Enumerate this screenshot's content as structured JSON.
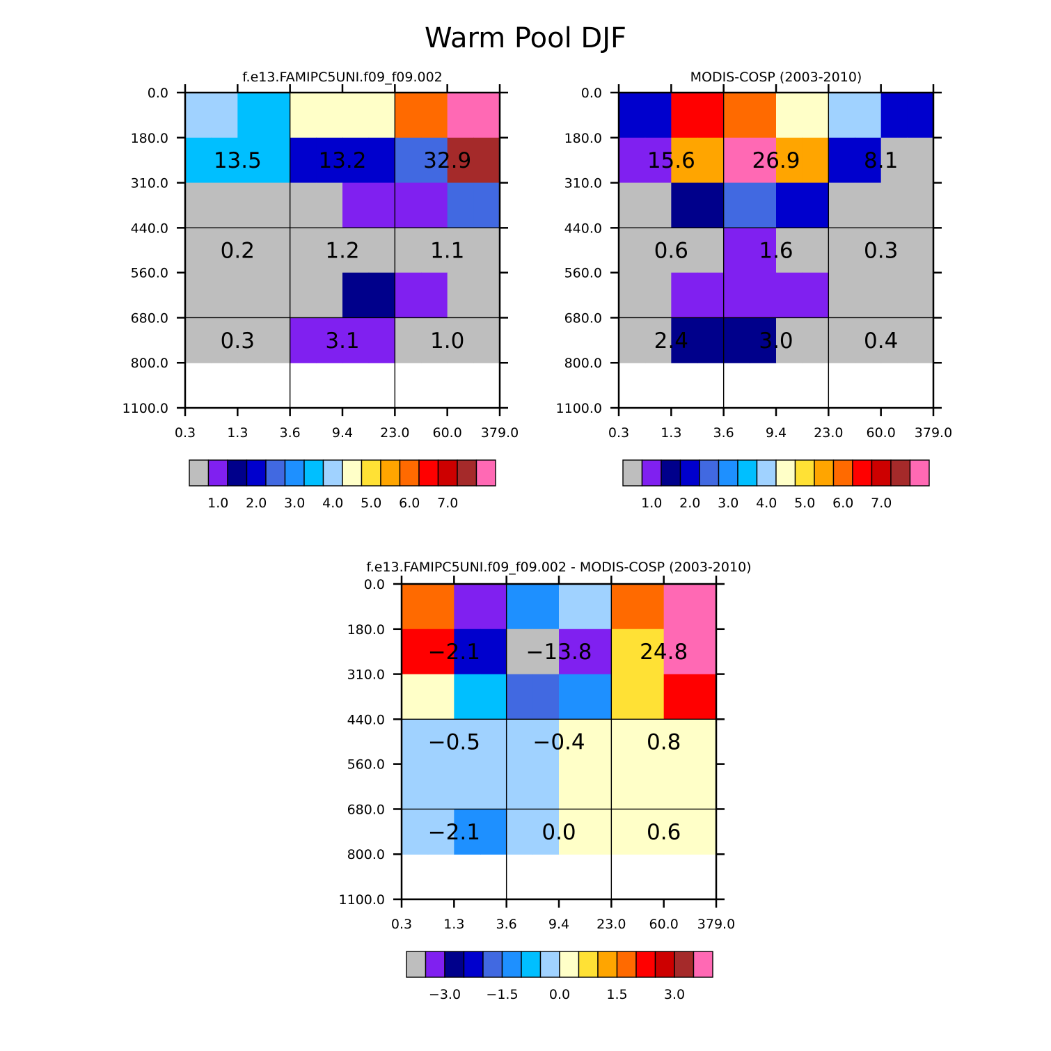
{
  "figure": {
    "title": "Warm Pool DJF"
  },
  "palette": [
    "#bebebe",
    "#8020f0",
    "#00008b",
    "#0000cd",
    "#4169e1",
    "#1e90ff",
    "#00bfff",
    "#a0d2ff",
    "#ffffc8",
    "#ffe135",
    "#ffa500",
    "#ff6a00",
    "#ff0000",
    "#cd0000",
    "#a52a2a",
    "#ff69b4"
  ],
  "chart_data": [
    {
      "type": "heatmap",
      "title": "f.e13.FAMIPC5UNI.f09_f09.002",
      "x_tick_labels": [
        "0.3",
        "1.3",
        "3.6",
        "9.4",
        "23.0",
        "60.0",
        "379.0"
      ],
      "y_tick_labels": [
        "0.0",
        "180.0",
        "310.0",
        "440.0",
        "560.0",
        "680.0",
        "800.0",
        "1100.0"
      ],
      "cell_colors": [
        [
          7,
          7,
          6,
          6,
          8,
          8,
          8,
          8,
          11,
          11,
          15,
          15
        ],
        [
          6,
          6,
          6,
          6,
          3,
          3,
          3,
          3,
          4,
          4,
          14,
          14
        ],
        [
          0,
          0,
          0,
          0,
          0,
          0,
          1,
          1,
          1,
          1,
          4,
          4
        ],
        [
          0,
          0,
          0,
          0,
          0,
          0,
          0,
          0,
          0,
          0,
          0,
          0
        ],
        [
          0,
          0,
          0,
          0,
          0,
          0,
          2,
          2,
          1,
          1,
          0,
          0
        ],
        [
          0,
          0,
          0,
          0,
          1,
          1,
          1,
          1,
          0,
          0,
          0,
          0
        ]
      ],
      "group_values": [
        [
          "13.5",
          "13.2",
          "32.9"
        ],
        [
          "0.2",
          "1.2",
          "1.1"
        ],
        [
          "0.3",
          "3.1",
          "1.0"
        ]
      ],
      "colorbar": {
        "labels": [
          "1.0",
          "2.0",
          "3.0",
          "4.0",
          "5.0",
          "6.0",
          "7.0"
        ]
      }
    },
    {
      "type": "heatmap",
      "title": "MODIS-COSP (2003-2010)",
      "x_tick_labels": [
        "0.3",
        "1.3",
        "3.6",
        "9.4",
        "23.0",
        "60.0",
        "379.0"
      ],
      "y_tick_labels": [
        "0.0",
        "180.0",
        "310.0",
        "440.0",
        "560.0",
        "680.0",
        "800.0",
        "1100.0"
      ],
      "cell_colors": [
        [
          3,
          3,
          12,
          12,
          11,
          11,
          8,
          8,
          7,
          7,
          3,
          3
        ],
        [
          1,
          1,
          10,
          10,
          15,
          15,
          10,
          10,
          3,
          3,
          0,
          0
        ],
        [
          0,
          0,
          2,
          2,
          4,
          4,
          3,
          3,
          0,
          0,
          0,
          0
        ],
        [
          0,
          0,
          0,
          0,
          1,
          1,
          0,
          0,
          0,
          0,
          0,
          0
        ],
        [
          0,
          0,
          1,
          1,
          1,
          1,
          1,
          1,
          0,
          0,
          0,
          0
        ],
        [
          0,
          0,
          2,
          2,
          2,
          2,
          0,
          0,
          0,
          0,
          0,
          0
        ]
      ],
      "group_values": [
        [
          "15.6",
          "26.9",
          "8.1"
        ],
        [
          "0.6",
          "1.6",
          "0.3"
        ],
        [
          "2.4",
          "3.0",
          "0.4"
        ]
      ],
      "colorbar": {
        "labels": [
          "1.0",
          "2.0",
          "3.0",
          "4.0",
          "5.0",
          "6.0",
          "7.0"
        ]
      }
    },
    {
      "type": "heatmap",
      "title": "f.e13.FAMIPC5UNI.f09_f09.002 - MODIS-COSP (2003-2010)",
      "x_tick_labels": [
        "0.3",
        "1.3",
        "3.6",
        "9.4",
        "23.0",
        "60.0",
        "379.0"
      ],
      "y_tick_labels": [
        "0.0",
        "180.0",
        "310.0",
        "440.0",
        "560.0",
        "680.0",
        "800.0",
        "1100.0"
      ],
      "cell_colors": [
        [
          11,
          11,
          1,
          1,
          5,
          5,
          7,
          7,
          11,
          11,
          15,
          15
        ],
        [
          12,
          12,
          3,
          3,
          0,
          0,
          1,
          1,
          9,
          9,
          15,
          15
        ],
        [
          8,
          8,
          6,
          6,
          4,
          4,
          5,
          5,
          9,
          9,
          12,
          12
        ],
        [
          7,
          7,
          7,
          7,
          7,
          7,
          8,
          8,
          8,
          8,
          8,
          8
        ],
        [
          7,
          7,
          7,
          7,
          7,
          7,
          8,
          8,
          8,
          8,
          8,
          8
        ],
        [
          7,
          7,
          5,
          5,
          7,
          7,
          8,
          8,
          8,
          8,
          8,
          8
        ]
      ],
      "group_values": [
        [
          "-2.1",
          "-13.8",
          "24.8"
        ],
        [
          "-0.5",
          "-0.4",
          "0.8"
        ],
        [
          "-2.1",
          "0.0",
          "0.6"
        ]
      ],
      "colorbar": {
        "labels": [
          "-3.0",
          "-1.5",
          "0.0",
          "1.5",
          "3.0"
        ]
      }
    }
  ]
}
